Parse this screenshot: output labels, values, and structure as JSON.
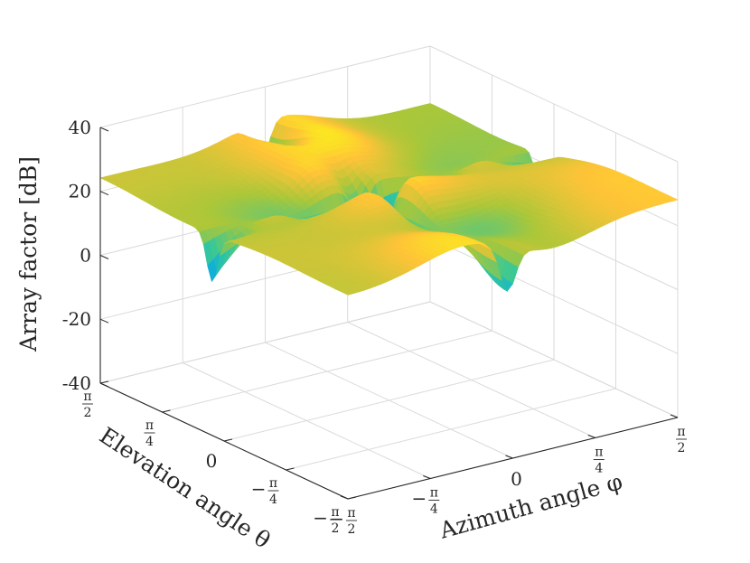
{
  "chart_data": {
    "type": "surface",
    "title": "",
    "zlabel": "Array factor [dB]",
    "xlabel": "Azimuth angle φ",
    "ylabel": "Elevation angle θ",
    "zlim": [
      -40,
      40
    ],
    "z_ticks": [
      "40",
      "20",
      "0",
      "-20",
      "-40"
    ],
    "z_tick_values": [
      40,
      20,
      0,
      -20,
      -40
    ],
    "xlim": [
      -1.5708,
      1.5708
    ],
    "ylim": [
      -1.5708,
      1.5708
    ],
    "x_ticks": [
      {
        "value": -1.5708,
        "sign": "−",
        "num": "π",
        "den": "2"
      },
      {
        "value": -0.7854,
        "sign": "−",
        "num": "π",
        "den": "4"
      },
      {
        "value": 0,
        "sign": "",
        "num": "0",
        "den": ""
      },
      {
        "value": 0.7854,
        "sign": "",
        "num": "π",
        "den": "4"
      },
      {
        "value": 1.5708,
        "sign": "",
        "num": "π",
        "den": "2"
      }
    ],
    "y_ticks": [
      {
        "value": 1.5708,
        "sign": "",
        "num": "π",
        "den": "2"
      },
      {
        "value": 0.7854,
        "sign": "",
        "num": "π",
        "den": "4"
      },
      {
        "value": 0,
        "sign": "",
        "num": "0",
        "den": ""
      },
      {
        "value": -0.7854,
        "sign": "−",
        "num": "π",
        "den": "4"
      },
      {
        "value": -1.5708,
        "sign": "−",
        "num": "π",
        "den": "2"
      }
    ],
    "grid": true,
    "colormap": "parula",
    "surface_range_db": [
      -5,
      33
    ]
  }
}
